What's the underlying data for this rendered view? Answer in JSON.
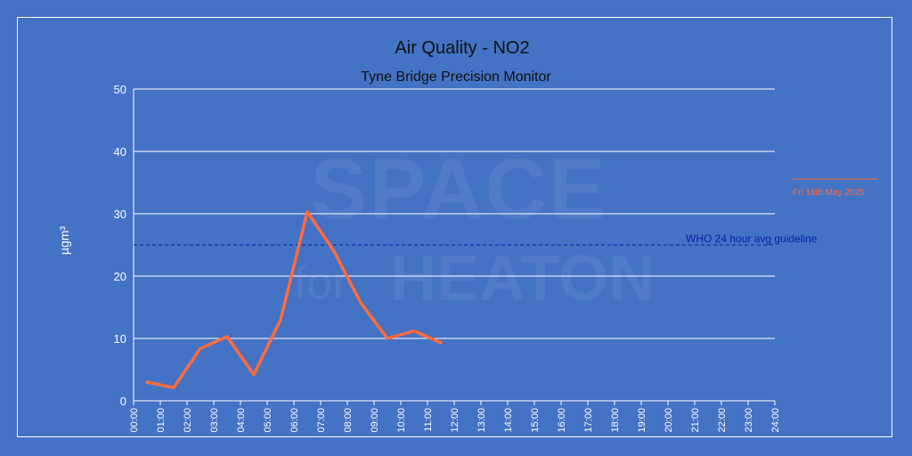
{
  "watermark": {
    "line1": "SPACE",
    "line2a": "for",
    "line2b": "HEATON"
  },
  "colors": {
    "background": "#4472c4",
    "series": "#ff6b3d",
    "reference": "#0a1fa8",
    "grid": "#ffffff"
  },
  "chart_data": {
    "type": "line",
    "title": "Air Quality - NO2",
    "subtitle": "Tyne Bridge Precision Monitor",
    "ylabel": "µgm³",
    "xlabel": "",
    "ylim": [
      0,
      50
    ],
    "yticks": [
      0,
      10,
      20,
      30,
      40,
      50
    ],
    "xlim": [
      0,
      24
    ],
    "xticks": [
      "00:00",
      "01:00",
      "02:00",
      "03:00",
      "04:00",
      "05:00",
      "06:00",
      "07:00",
      "08:00",
      "09:00",
      "10:00",
      "11:00",
      "12:00",
      "13:00",
      "14:00",
      "15:00",
      "16:00",
      "17:00",
      "18:00",
      "19:00",
      "20:00",
      "21:00",
      "22:00",
      "23:00",
      "24:00"
    ],
    "grid": true,
    "legend_position": "right",
    "series": [
      {
        "name": "Fri 16th May 2025",
        "color": "#ff6b3d",
        "x": [
          "00:30",
          "01:30",
          "02:30",
          "03:30",
          "04:30",
          "05:30",
          "06:30",
          "07:30",
          "08:30",
          "09:30",
          "10:30",
          "11:30"
        ],
        "values": [
          3.0,
          2.1,
          8.4,
          10.3,
          4.2,
          13.0,
          30.3,
          24.0,
          15.7,
          10.0,
          11.2,
          9.3
        ]
      }
    ],
    "reference_lines": [
      {
        "label": "WHO 24 hour avg guideline",
        "value": 25,
        "style": "dashed",
        "color": "#0a1fa8"
      }
    ]
  }
}
